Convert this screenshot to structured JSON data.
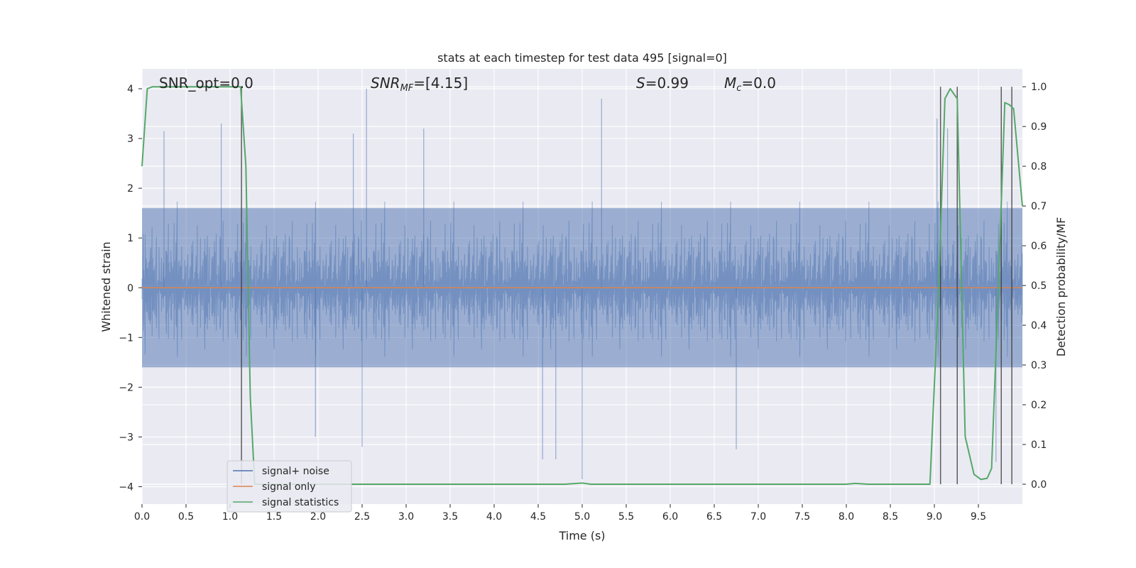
{
  "chart_data": {
    "type": "line",
    "title": "stats at each timestep for test data 495 [signal=0]",
    "xlabel": "Time (s)",
    "ylabel": "Whitened strain",
    "ylabel_right": "Detection probability/MF",
    "xlim": [
      0,
      10
    ],
    "ylim": [
      -4.35,
      4.4
    ],
    "ylim_right": [
      -0.05,
      1.045
    ],
    "x_ticks": [
      0,
      0.5,
      1,
      1.5,
      2,
      2.5,
      3,
      3.5,
      4,
      4.5,
      5,
      5.5,
      6,
      6.5,
      7,
      7.5,
      8,
      8.5,
      9,
      9.5
    ],
    "x_tick_labels": [
      "0.0",
      "0.5",
      "1.0",
      "1.5",
      "2.0",
      "2.5",
      "3.0",
      "3.5",
      "4.0",
      "4.5",
      "5.0",
      "5.5",
      "6.0",
      "6.5",
      "7.0",
      "7.5",
      "8.0",
      "8.5",
      "9.0",
      "9.5"
    ],
    "y_ticks": [
      -4,
      -3,
      -2,
      -1,
      0,
      1,
      2,
      3,
      4
    ],
    "y_tick_labels": [
      "−4",
      "−3",
      "−2",
      "−1",
      "0",
      "1",
      "2",
      "3",
      "4"
    ],
    "y_right_ticks": [
      0.0,
      0.1,
      0.2,
      0.3,
      0.4,
      0.5,
      0.6,
      0.7,
      0.8,
      0.9,
      1.0
    ],
    "y_right_tick_labels": [
      "0.0",
      "0.1",
      "0.2",
      "0.3",
      "0.4",
      "0.5",
      "0.6",
      "0.7",
      "0.8",
      "0.9",
      "1.0"
    ],
    "grid": true,
    "legend_position": "lower-left",
    "annotations": {
      "snr_opt": "SNR_opt=0.0",
      "snr_mf_italic": "SNR",
      "snr_mf_sub": "MF",
      "snr_mf_rest": "=[4.15]",
      "s_italic": "S",
      "s_rest": "=0.99",
      "mc_italic": "M",
      "mc_sub": "c",
      "mc_rest": "=0.0"
    },
    "series": [
      {
        "name": "signal+ noise",
        "color": "#4c72b0",
        "style": "noise",
        "core_band": [
          -1.6,
          1.6
        ],
        "peaks": [
          {
            "x": 0.25,
            "y": 3.15
          },
          {
            "x": 0.9,
            "y": 3.3
          },
          {
            "x": 2.55,
            "y": 4.0
          },
          {
            "x": 2.4,
            "y": 3.1
          },
          {
            "x": 3.2,
            "y": 3.2
          },
          {
            "x": 5.22,
            "y": 3.8
          },
          {
            "x": 9.03,
            "y": 3.4
          },
          {
            "x": 9.15,
            "y": 3.2
          },
          {
            "x": 1.97,
            "y": -3.0
          },
          {
            "x": 2.5,
            "y": -3.2
          },
          {
            "x": 4.55,
            "y": -3.45
          },
          {
            "x": 4.7,
            "y": -3.45
          },
          {
            "x": 5.0,
            "y": -3.85
          },
          {
            "x": 6.75,
            "y": -3.25
          },
          {
            "x": 9.7,
            "y": -3.5
          }
        ]
      },
      {
        "name": "signal only",
        "color": "#dd8452",
        "x": [
          0,
          10
        ],
        "y": [
          0,
          0
        ]
      },
      {
        "name": "signal statistics",
        "color": "#55a868",
        "axis": "right",
        "x": [
          0.0,
          0.06,
          0.12,
          1.12,
          1.18,
          1.23,
          1.28,
          4.8,
          5.0,
          5.1,
          8.0,
          8.1,
          8.25,
          8.95,
          9.05,
          9.12,
          9.18,
          9.26,
          9.35,
          9.45,
          9.53,
          9.6,
          9.65,
          9.72,
          9.8,
          9.85,
          9.9,
          10.0
        ],
        "y": [
          0.8,
          0.995,
          1.0,
          1.0,
          0.8,
          0.22,
          0.0,
          0.0,
          0.003,
          0.0,
          0.0,
          0.002,
          0.0,
          0.0,
          0.5,
          0.97,
          0.995,
          0.97,
          0.12,
          0.025,
          0.012,
          0.015,
          0.04,
          0.45,
          0.96,
          0.955,
          0.945,
          0.7
        ]
      }
    ],
    "vlines": [
      1.13,
      9.07,
      9.26,
      9.76,
      9.88
    ]
  }
}
